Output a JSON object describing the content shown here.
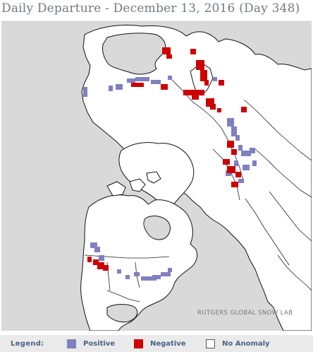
{
  "header": {
    "title": "Daily Departure - December 13, 2016 (Day 348)"
  },
  "map": {
    "credit": "RUTGERS GLOBAL SNOW LAB",
    "colors": {
      "ocean": "#d9d9d9",
      "land": "#ffffff",
      "coast": "#111111",
      "border": "#222222"
    }
  },
  "legend": {
    "title": "Legend:",
    "items": [
      {
        "label": "Positive",
        "color": "#8080c0"
      },
      {
        "label": "Negative",
        "color": "#cc0000"
      },
      {
        "label": "No Anomaly",
        "color": "#ffffff"
      }
    ]
  }
}
